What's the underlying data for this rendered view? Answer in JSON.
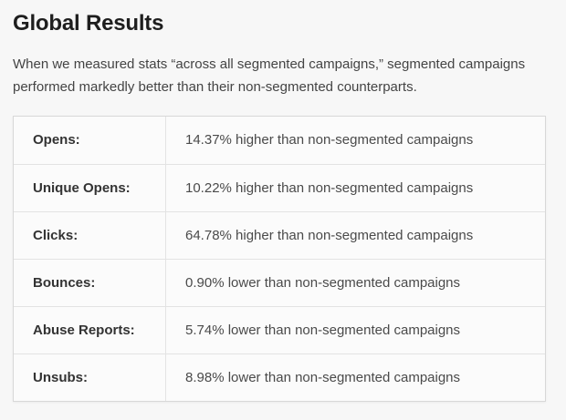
{
  "section": {
    "title": "Global Results",
    "intro": "When we measured stats “across all segmented campaigns,” segmented campaigns performed markedly better than their non-segmented counterparts."
  },
  "results_table": {
    "rows": [
      {
        "label": "Opens:",
        "value": "14.37% higher than non-segmented campaigns"
      },
      {
        "label": "Unique Opens:",
        "value": "10.22% higher than non-segmented campaigns"
      },
      {
        "label": "Clicks:",
        "value": "64.78% higher than non-segmented campaigns"
      },
      {
        "label": "Bounces:",
        "value": "0.90% lower than non-segmented campaigns"
      },
      {
        "label": "Abuse Reports:",
        "value": "5.74% lower than non-segmented campaigns"
      },
      {
        "label": "Unsubs:",
        "value": "8.98% lower than non-segmented campaigns"
      }
    ]
  },
  "colors": {
    "page_bg": "#f7f7f7",
    "table_bg": "#fbfbfb",
    "table_border": "#d8d8d8",
    "row_divider": "#e3e3e3",
    "heading_text": "#1e1e1e",
    "body_text": "#444444",
    "label_text": "#333333",
    "value_text": "#4a4a4a"
  }
}
